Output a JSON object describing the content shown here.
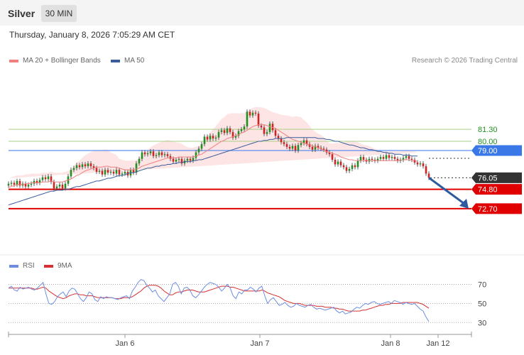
{
  "header": {
    "instrument": "Silver",
    "timeframe": "30 MIN"
  },
  "datetime": "Thursday, January 8, 2026 7:05:29 AM CET",
  "legend": {
    "ma20": "MA 20 + Bollinger Bands",
    "ma50": "MA 50",
    "credit": "Research © 2026 Trading Central"
  },
  "rsi_legend": {
    "rsi": "RSI",
    "ma": "9MA"
  },
  "colors": {
    "up": "#1f8f1f",
    "down": "#d42020",
    "ma20": "#f08080",
    "ma50": "#3a5c9a",
    "band": "#fde0e0",
    "resistance": "#aacf88",
    "pivot": "#5b8ff0",
    "support": "#e00000",
    "rsi": "#6d8ee0",
    "rsi_ma": "#d63030",
    "arrow": "#2e5b9e"
  },
  "chart_data": [
    {
      "type": "candlestick",
      "title": "Silver",
      "timeframe": "30 MIN",
      "ylim": [
        68.0,
        88.0
      ],
      "x_ticks": [
        "Jan 6",
        "Jan 7",
        "Jan 8",
        "Jan 12"
      ],
      "levels": [
        {
          "label": "81.30",
          "value": 81.3,
          "kind": "resistance"
        },
        {
          "label": "80.00",
          "value": 80.0,
          "kind": "resistance"
        },
        {
          "label": "79.00",
          "value": 79.0,
          "kind": "pivot"
        },
        {
          "label": "76.05",
          "value": 76.05,
          "kind": "last"
        },
        {
          "label": "74.80",
          "value": 74.8,
          "kind": "support"
        },
        {
          "label": "72.70",
          "value": 72.7,
          "kind": "support"
        }
      ],
      "closes": [
        75.4,
        75.5,
        75.3,
        75.7,
        75.2,
        75.4,
        75.1,
        75.3,
        75.4,
        75.7,
        75.5,
        75.8,
        76.1,
        75.9,
        76.2,
        75.6,
        74.9,
        75.1,
        75.3,
        74.9,
        75.4,
        76.2,
        76.9,
        77.1,
        77.4,
        77.2,
        77.5,
        77.3,
        77.6,
        77.3,
        77.1,
        76.7,
        76.8,
        76.4,
        76.9,
        76.6,
        76.7,
        76.5,
        76.9,
        76.4,
        76.5,
        76.7,
        76.3,
        76.9,
        76.6,
        77.6,
        78.1,
        78.8,
        78.6,
        78.7,
        78.9,
        78.4,
        78.5,
        78.8,
        78.5,
        78.6,
        78.4,
        78.1,
        77.8,
        78.0,
        78.1,
        77.6,
        77.9,
        78.1,
        77.9,
        78.2,
        78.8,
        79.2,
        79.7,
        80.5,
        80.2,
        80.6,
        80.3,
        80.4,
        81.0,
        81.2,
        80.9,
        81.4,
        81.0,
        80.4,
        80.6,
        81.1,
        81.3,
        81.6,
        83.2,
        82.8,
        83.1,
        83.0,
        81.7,
        81.5,
        80.8,
        81.0,
        81.9,
        81.2,
        80.6,
        80.3,
        79.9,
        79.7,
        79.4,
        79.2,
        79.5,
        79.0,
        79.6,
        79.8,
        80.1,
        79.7,
        79.4,
        79.1,
        79.5,
        79.3,
        79.2,
        79.1,
        78.8,
        78.6,
        78.0,
        77.5,
        77.8,
        77.4,
        77.2,
        76.8,
        77.0,
        77.4,
        77.2,
        77.9,
        78.3,
        78.0,
        77.8,
        78.1,
        78.0,
        77.9,
        78.1,
        78.3,
        78.1,
        78.5,
        78.2,
        78.3,
        78.1,
        77.9,
        78.0,
        78.2,
        78.4,
        78.1,
        78.0,
        77.7,
        77.5,
        77.6,
        77.3,
        76.5,
        76.05
      ],
      "ma20": [
        75.0,
        75.1,
        75.2,
        75.3,
        75.3,
        75.3,
        75.4,
        75.4,
        75.5,
        75.5,
        75.5,
        75.5,
        75.6,
        75.6,
        75.6,
        75.7,
        75.6,
        75.6,
        75.6,
        75.6,
        75.7,
        75.8,
        75.9,
        76.1,
        76.3,
        76.4,
        76.6,
        76.8,
        76.9,
        77.0,
        77.1,
        77.2,
        77.2,
        77.2,
        77.3,
        77.3,
        77.2,
        77.2,
        77.2,
        77.1,
        77.0,
        76.9,
        76.9,
        76.9,
        76.9,
        77.0,
        77.1,
        77.3,
        77.4,
        77.5,
        77.6,
        77.7,
        77.8,
        77.9,
        78.0,
        78.1,
        78.2,
        78.2,
        78.2,
        78.2,
        78.3,
        78.3,
        78.3,
        78.3,
        78.3,
        78.3,
        78.4,
        78.5,
        78.6,
        78.8,
        79.0,
        79.2,
        79.4,
        79.6,
        79.8,
        80.0,
        80.1,
        80.3,
        80.4,
        80.5,
        80.6,
        80.7,
        80.9,
        81.0,
        81.2,
        81.4,
        81.6,
        81.7,
        81.8,
        81.8,
        81.8,
        81.7,
        81.6,
        81.5,
        81.4,
        81.2,
        81.0,
        80.8,
        80.6,
        80.4,
        80.2,
        80.1,
        80.0,
        79.9,
        79.8,
        79.7,
        79.6,
        79.5,
        79.4,
        79.3,
        79.2,
        79.0,
        78.9,
        78.8,
        78.7,
        78.6,
        78.5,
        78.3,
        78.2,
        78.1,
        78.0,
        78.0,
        77.9,
        77.9,
        77.9,
        77.9,
        77.9,
        77.9,
        77.9,
        77.9,
        77.9,
        77.9,
        77.9,
        77.9,
        77.9,
        77.9,
        77.9,
        77.9,
        77.9,
        78.0,
        78.0,
        78.0,
        77.9,
        77.9,
        77.8
      ],
      "ma50": [
        73.1,
        73.2,
        73.3,
        73.4,
        73.5,
        73.6,
        73.7,
        73.8,
        73.9,
        74.0,
        74.1,
        74.2,
        74.3,
        74.4,
        74.5,
        74.6,
        74.6,
        74.7,
        74.7,
        74.7,
        74.8,
        74.8,
        74.9,
        75.0,
        75.1,
        75.1,
        75.2,
        75.3,
        75.4,
        75.5,
        75.6,
        75.7,
        75.7,
        75.8,
        75.9,
        76.0,
        76.0,
        76.1,
        76.2,
        76.3,
        76.3,
        76.4,
        76.5,
        76.6,
        76.6,
        76.7,
        76.8,
        76.9,
        77.0,
        77.1,
        77.1,
        77.2,
        77.3,
        77.3,
        77.4,
        77.4,
        77.5,
        77.5,
        77.6,
        77.6,
        77.7,
        77.7,
        77.8,
        77.8,
        77.8,
        77.9,
        77.9,
        78.0,
        78.0,
        78.1,
        78.2,
        78.3,
        78.4,
        78.5,
        78.6,
        78.7,
        78.8,
        78.9,
        79.0,
        79.1,
        79.2,
        79.3,
        79.4,
        79.5,
        79.6,
        79.7,
        79.8,
        79.9,
        80.0,
        80.0,
        80.1,
        80.1,
        80.2,
        80.2,
        80.3,
        80.3,
        80.3,
        80.3,
        80.4,
        80.4,
        80.4,
        80.4,
        80.4,
        80.4,
        80.4,
        80.4,
        80.4,
        80.4,
        80.4,
        80.3,
        80.3,
        80.3,
        80.2,
        80.2,
        80.1,
        80.0,
        80.0,
        79.9,
        79.8,
        79.7,
        79.6,
        79.6,
        79.5,
        79.4,
        79.3,
        79.3,
        79.2,
        79.1,
        79.1,
        79.0,
        78.9,
        78.9,
        78.8,
        78.8,
        78.7,
        78.7,
        78.6,
        78.6,
        78.6,
        78.5,
        78.5,
        78.5,
        78.4,
        78.4,
        78.4
      ],
      "projection": {
        "from": 76.05,
        "to": 72.7
      }
    },
    {
      "type": "line",
      "title": "RSI",
      "ylim": [
        25,
        80
      ],
      "y_ticks": [
        30,
        50,
        70
      ],
      "series": [
        {
          "name": "RSI",
          "values": [
            66,
            68,
            64,
            63,
            67,
            65,
            66,
            67,
            65,
            64,
            66,
            69,
            72,
            60,
            50,
            49,
            52,
            57,
            60,
            62,
            57,
            63,
            66,
            65,
            60,
            55,
            52,
            56,
            62,
            60,
            54,
            52,
            57,
            55,
            57,
            56,
            56,
            55,
            54,
            56,
            57,
            58,
            55,
            63,
            67,
            72,
            75,
            74,
            69,
            66,
            62,
            64,
            58,
            55,
            52,
            56,
            60,
            70,
            72,
            68,
            60,
            66,
            67,
            64,
            58,
            56,
            59,
            63,
            67,
            70,
            72,
            71,
            70,
            67,
            63,
            66,
            70,
            66,
            58,
            55,
            62,
            60,
            64,
            64,
            67,
            65,
            62,
            66,
            68,
            58,
            50,
            54,
            56,
            52,
            48,
            49,
            51,
            48,
            46,
            47,
            50,
            48,
            47,
            46,
            48,
            49,
            46,
            44,
            45,
            44,
            43,
            44,
            45,
            46,
            42,
            40,
            42,
            39,
            40,
            41,
            44,
            46,
            45,
            48,
            50,
            49,
            51,
            52,
            50,
            49,
            50,
            51,
            52,
            50,
            53,
            52,
            51,
            49,
            51,
            50,
            49,
            50,
            47,
            44,
            42,
            36,
            31
          ]
        },
        {
          "name": "9MA",
          "values": [
            66,
            66,
            66,
            66,
            66,
            66,
            66,
            66,
            66,
            65,
            65,
            66,
            67,
            66,
            63,
            61,
            59,
            57,
            56,
            55,
            56,
            58,
            59,
            60,
            60,
            59,
            59,
            58,
            58,
            58,
            57,
            56,
            56,
            56,
            56,
            56,
            56,
            55,
            55,
            55,
            56,
            56,
            56,
            57,
            59,
            61,
            63,
            66,
            68,
            69,
            69,
            69,
            68,
            66,
            63,
            61,
            59,
            59,
            61,
            62,
            62,
            63,
            64,
            64,
            64,
            63,
            62,
            62,
            62,
            63,
            64,
            65,
            66,
            67,
            68,
            68,
            68,
            67,
            67,
            66,
            65,
            64,
            63,
            63,
            63,
            63,
            63,
            63,
            64,
            63,
            61,
            60,
            59,
            58,
            57,
            55,
            53,
            52,
            51,
            50,
            50,
            50,
            49,
            48,
            48,
            48,
            48,
            47,
            47,
            47,
            46,
            46,
            46,
            45,
            45,
            44,
            44,
            43,
            42,
            42,
            42,
            42,
            42,
            43,
            43,
            44,
            45,
            46,
            47,
            48,
            48,
            49,
            49,
            50,
            50,
            50,
            50,
            51,
            51,
            51,
            51,
            51,
            51,
            50,
            49,
            47,
            45
          ]
        }
      ]
    }
  ]
}
